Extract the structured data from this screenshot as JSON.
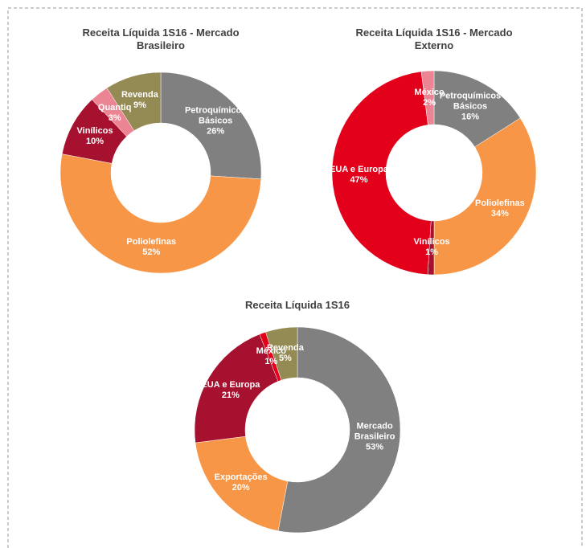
{
  "chart_data": [
    {
      "type": "pie",
      "title": "Receita Líquida 1S16 - Mercado Brasileiro",
      "categories": [
        "Petroquímicos Básicos",
        "Poliolefinas",
        "Vinílicos",
        "Quantiq",
        "Revenda"
      ],
      "values": [
        26,
        52,
        10,
        3,
        9
      ],
      "value_labels": [
        "26%",
        "52%",
        "10%",
        "3%",
        "9%"
      ],
      "colors": [
        "#808080",
        "#f79646",
        "#a5112e",
        "#ec8593",
        "#948a54"
      ]
    },
    {
      "type": "pie",
      "title": "Receita Líquida 1S16 - Mercado Externo",
      "categories": [
        "Petroquímicos Básicos",
        "Poliolefinas",
        "Vinílicos",
        "EUA e Europa",
        "México"
      ],
      "values": [
        16,
        34,
        1,
        47,
        2
      ],
      "value_labels": [
        "16%",
        "34%",
        "1%",
        "47%",
        "2%"
      ],
      "colors": [
        "#808080",
        "#f79646",
        "#a5112e",
        "#e2001a",
        "#ec8593"
      ]
    },
    {
      "type": "pie",
      "title": "Receita Líquida 1S16",
      "categories": [
        "Mercado Brasileiro",
        "Exportações",
        "EUA e Europa",
        "México",
        "Revenda"
      ],
      "values": [
        53,
        20,
        21,
        1,
        5
      ],
      "value_labels": [
        "53%",
        "20%",
        "21%",
        "1%",
        "5%"
      ],
      "colors": [
        "#808080",
        "#f79646",
        "#a5112e",
        "#e2001a",
        "#948a54"
      ]
    }
  ]
}
